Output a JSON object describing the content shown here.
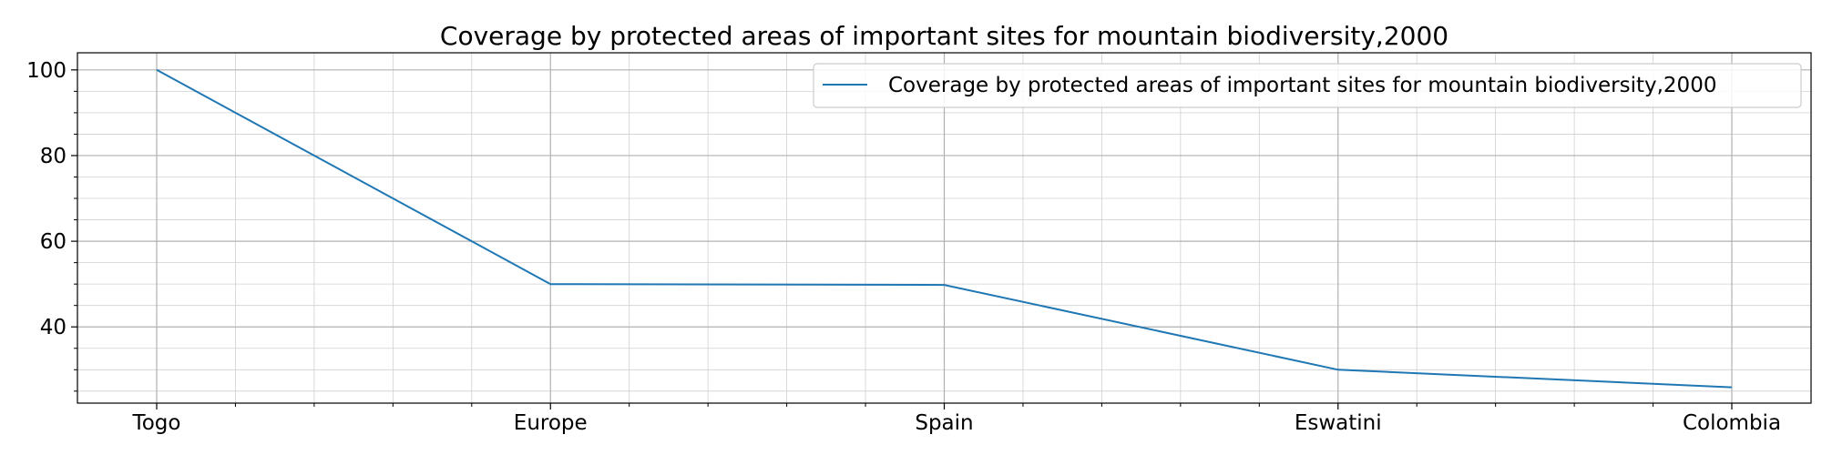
{
  "chart_data": {
    "type": "line",
    "title": "Coverage by protected areas of important sites for mountain biodiversity,2000",
    "xlabel": "",
    "ylabel": "",
    "categories": [
      "Togo",
      "Europe",
      "Spain",
      "Eswatini",
      "Colombia"
    ],
    "series": [
      {
        "name": "Coverage by protected areas of important sites for mountain biodiversity,2000",
        "values": [
          100,
          50.0,
          49.8,
          30.0,
          25.9
        ],
        "color": "#1f77b4"
      }
    ],
    "ylim": [
      22.2,
      104
    ],
    "yticks": [
      40,
      60,
      80,
      100
    ],
    "yticks_minor": [
      25,
      30,
      35,
      45,
      50,
      55,
      65,
      70,
      75,
      85,
      90,
      95
    ],
    "grid": true,
    "minor_grid": true,
    "legend_position": "top-right"
  }
}
